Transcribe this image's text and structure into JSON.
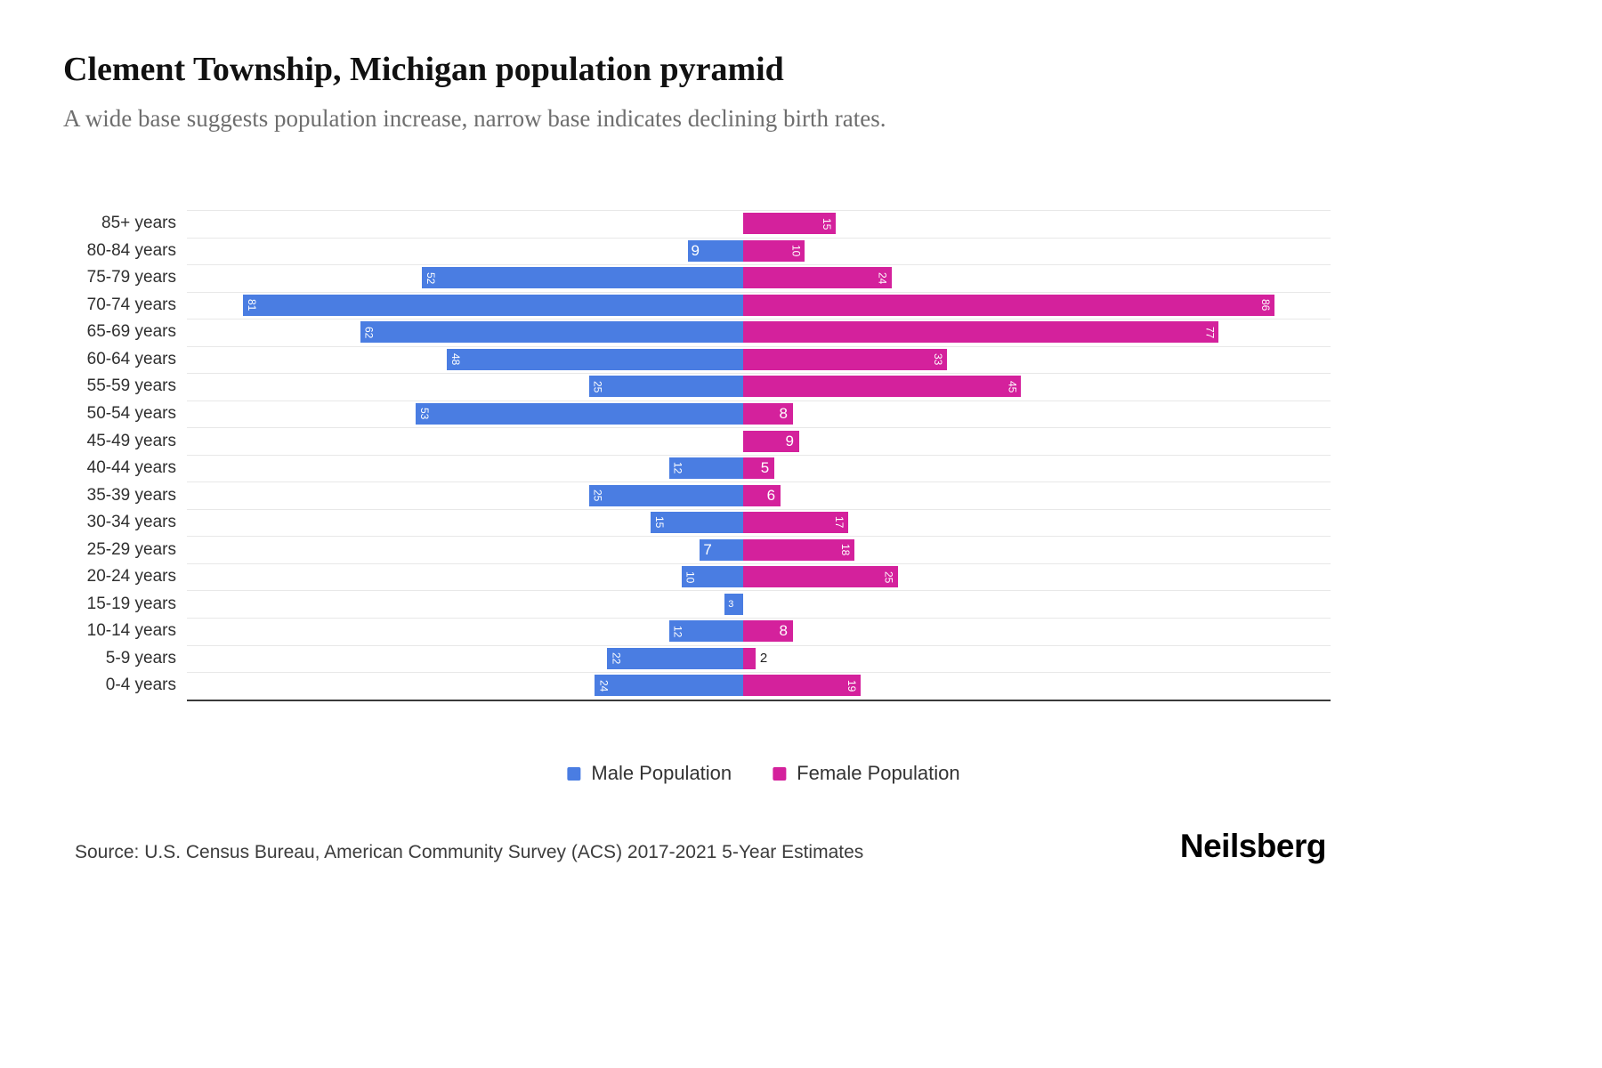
{
  "page": {
    "title": "Clement Township, Michigan population pyramid",
    "subtitle": "A wide base suggests population increase, narrow base indicates declining birth rates.",
    "source": "Source: U.S. Census Bureau, American Community Survey (ACS) 2017-2021 5-Year Estimates",
    "brand": "Neilsberg"
  },
  "legend": {
    "items": [
      {
        "label": "Male Population",
        "color": "#4a7de2"
      },
      {
        "label": "Female Population",
        "color": "#d4219c"
      }
    ]
  },
  "chart_data": {
    "type": "bar",
    "subtype": "population-pyramid",
    "orientation": "horizontal",
    "title": "Clement Township, Michigan population pyramid",
    "categories": [
      "85+ years",
      "80-84 years",
      "75-79 years",
      "70-74 years",
      "65-69 years",
      "60-64 years",
      "55-59 years",
      "50-54 years",
      "45-49 years",
      "40-44 years",
      "35-39 years",
      "30-34 years",
      "25-29 years",
      "20-24 years",
      "15-19 years",
      "10-14 years",
      "5-9 years",
      "0-4 years"
    ],
    "series": [
      {
        "name": "Male Population",
        "side": "left",
        "color": "#4a7de2",
        "values": [
          0,
          9,
          52,
          81,
          62,
          48,
          25,
          53,
          0,
          12,
          25,
          15,
          7,
          10,
          3,
          12,
          22,
          24
        ]
      },
      {
        "name": "Female Population",
        "side": "right",
        "color": "#d4219c",
        "values": [
          15,
          10,
          24,
          86,
          77,
          33,
          45,
          8,
          9,
          5,
          6,
          17,
          18,
          25,
          0,
          8,
          2,
          19
        ]
      }
    ],
    "value_axis": {
      "min": 0,
      "max_per_side": 90
    },
    "grid": true,
    "legend_position": "bottom"
  }
}
